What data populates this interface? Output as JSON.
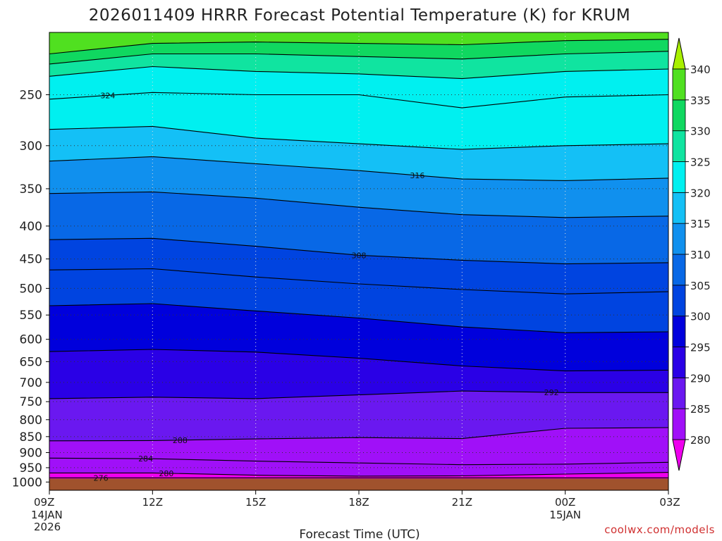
{
  "chart_data": {
    "type": "heatmap",
    "title": "2026011409 HRRR Forecast Potential Temperature (K) for KRUM",
    "xlabel": "Forecast Time (UTC)",
    "ylabel": "",
    "credit": "coolwx.com/models",
    "x_ticks": [
      {
        "hour": 0,
        "label": "09Z",
        "sub1": "14JAN",
        "sub2": "2026"
      },
      {
        "hour": 3,
        "label": "12Z",
        "sub1": "",
        "sub2": ""
      },
      {
        "hour": 6,
        "label": "15Z",
        "sub1": "",
        "sub2": ""
      },
      {
        "hour": 9,
        "label": "18Z",
        "sub1": "",
        "sub2": ""
      },
      {
        "hour": 12,
        "label": "21Z",
        "sub1": "",
        "sub2": ""
      },
      {
        "hour": 15,
        "label": "00Z",
        "sub1": "15JAN",
        "sub2": ""
      },
      {
        "hour": 18,
        "label": "03Z",
        "sub1": "",
        "sub2": ""
      }
    ],
    "xlim": [
      0,
      18
    ],
    "y_ticks": [
      250,
      300,
      350,
      400,
      450,
      500,
      550,
      600,
      650,
      700,
      750,
      800,
      850,
      900,
      950,
      1000
    ],
    "y_scale": "log-pressure (hPa, inverted)",
    "ylim": [
      1030,
      200
    ],
    "grid": true,
    "colorbar": {
      "levels": [
        280,
        285,
        290,
        295,
        300,
        305,
        310,
        315,
        320,
        325,
        330,
        335,
        340
      ],
      "colors": [
        "#ee00ee",
        "#a010f8",
        "#6a18f0",
        "#2a00e6",
        "#0000dc",
        "#0044e0",
        "#0868e6",
        "#1090ee",
        "#14c0f6",
        "#00f0f0",
        "#10e4a0",
        "#10d860",
        "#50e020",
        "#a8f000"
      ],
      "extend": "both"
    },
    "ground_color": "#a0522d",
    "time_hours": [
      0,
      3,
      6,
      9,
      12,
      15,
      18
    ],
    "isentropes": [
      {
        "theta": 276,
        "p": [
          985,
          985,
          985,
          985,
          985,
          985,
          985
        ],
        "label": true
      },
      {
        "theta": 280,
        "p": [
          968,
          968,
          976,
          979,
          978,
          972,
          966
        ],
        "label": true
      },
      {
        "theta": 284,
        "p": [
          918,
          920,
          928,
          934,
          940,
          938,
          932
        ],
        "label": true
      },
      {
        "theta": 288,
        "p": [
          863,
          862,
          857,
          853,
          856,
          825,
          823
        ],
        "label": true
      },
      {
        "theta": 292,
        "p": [
          742,
          738,
          742,
          732,
          722,
          726,
          726
        ],
        "label": true
      },
      {
        "theta": 296,
        "p": [
          627,
          622,
          628,
          642,
          660,
          672,
          670
        ],
        "label": false
      },
      {
        "theta": 300,
        "p": [
          532,
          528,
          542,
          556,
          574,
          586,
          584
        ],
        "label": false
      },
      {
        "theta": 304,
        "p": [
          468,
          466,
          480,
          492,
          502,
          510,
          506
        ],
        "label": false
      },
      {
        "theta": 308,
        "p": [
          420,
          418,
          430,
          444,
          452,
          458,
          456
        ],
        "label": true
      },
      {
        "theta": 312,
        "p": [
          356,
          354,
          362,
          374,
          384,
          388,
          386
        ],
        "label": false
      },
      {
        "theta": 316,
        "p": [
          317,
          312,
          320,
          328,
          338,
          340,
          337
        ],
        "label": true
      },
      {
        "theta": 320,
        "p": [
          283,
          280,
          292,
          298,
          304,
          300,
          298
        ],
        "label": false
      },
      {
        "theta": 324,
        "p": [
          254,
          248,
          250,
          250,
          262,
          252,
          250
        ],
        "label": true
      },
      {
        "theta": 328,
        "p": [
          234,
          226,
          230,
          232,
          236,
          230,
          228
        ],
        "label": false
      },
      {
        "theta": 332,
        "p": [
          224,
          216,
          216,
          218,
          220,
          216,
          214
        ],
        "label": false
      },
      {
        "theta": 336,
        "p": [
          216,
          208,
          207,
          208,
          209,
          206,
          205
        ],
        "label": false
      }
    ]
  }
}
